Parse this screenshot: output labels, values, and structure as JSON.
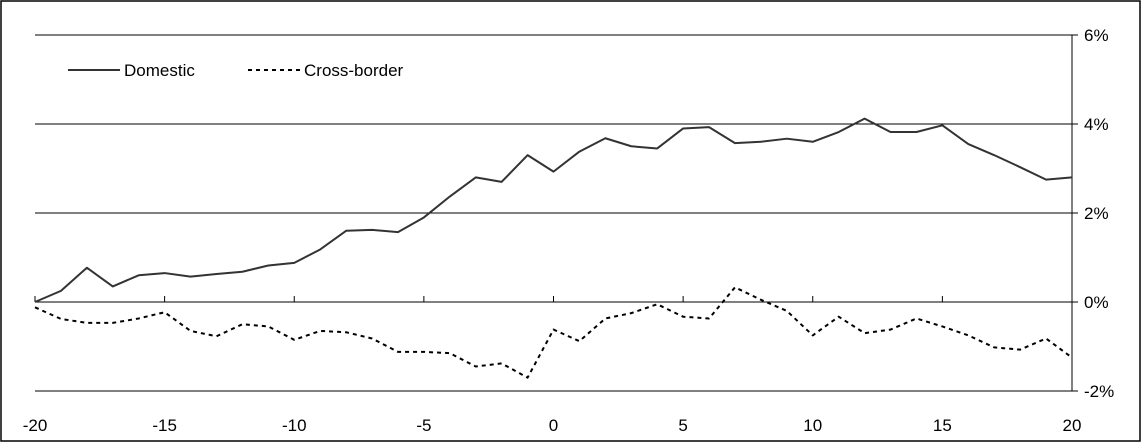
{
  "chart_data": {
    "type": "line",
    "title": "",
    "xlabel": "",
    "ylabel": "",
    "x": [
      -20,
      -19,
      -18,
      -17,
      -16,
      -15,
      -14,
      -13,
      -12,
      -11,
      -10,
      -9,
      -8,
      -7,
      -6,
      -5,
      -4,
      -3,
      -2,
      -1,
      0,
      1,
      2,
      3,
      4,
      5,
      6,
      7,
      8,
      9,
      10,
      11,
      12,
      13,
      14,
      15,
      16,
      17,
      18,
      19,
      20
    ],
    "xlim": [
      -20,
      20
    ],
    "ylim": [
      -2,
      6
    ],
    "x_ticks": [
      "-20",
      "-15",
      "-10",
      "-5",
      "0",
      "5",
      "10",
      "15",
      "20"
    ],
    "x_tick_values": [
      -20,
      -15,
      -10,
      -5,
      0,
      5,
      10,
      15,
      20
    ],
    "y_ticks": [
      "-2%",
      "0%",
      "2%",
      "4%",
      "6%"
    ],
    "y_tick_values": [
      -2,
      0,
      2,
      4,
      6
    ],
    "y_axis_side": "right",
    "grid": "horizontal",
    "legend_position": "top-left",
    "series": [
      {
        "name": "Domestic",
        "style": "solid",
        "color": "#333333",
        "values": [
          0.0,
          0.25,
          0.77,
          0.35,
          0.6,
          0.65,
          0.57,
          0.63,
          0.68,
          0.82,
          0.88,
          1.18,
          1.6,
          1.62,
          1.57,
          1.9,
          2.37,
          2.8,
          2.7,
          3.3,
          2.93,
          3.38,
          3.68,
          3.5,
          3.45,
          3.9,
          3.93,
          3.57,
          3.6,
          3.67,
          3.6,
          3.82,
          4.12,
          3.82,
          3.82,
          3.97,
          3.55,
          3.3,
          3.03,
          2.75,
          2.8
        ]
      },
      {
        "name": "Cross-border",
        "style": "dashed",
        "color": "#000000",
        "values": [
          -0.12,
          -0.38,
          -0.47,
          -0.47,
          -0.37,
          -0.23,
          -0.65,
          -0.77,
          -0.5,
          -0.55,
          -0.85,
          -0.65,
          -0.68,
          -0.82,
          -1.12,
          -1.12,
          -1.15,
          -1.45,
          -1.38,
          -1.7,
          -0.62,
          -0.88,
          -0.37,
          -0.25,
          -0.05,
          -0.33,
          -0.37,
          0.33,
          0.05,
          -0.2,
          -0.75,
          -0.33,
          -0.7,
          -0.62,
          -0.37,
          -0.55,
          -0.75,
          -1.02,
          -1.07,
          -0.82,
          -1.25
        ]
      }
    ]
  }
}
